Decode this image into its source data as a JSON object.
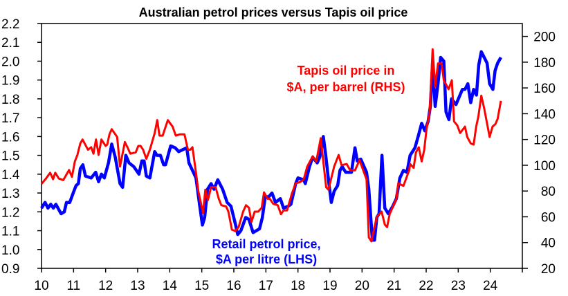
{
  "chart_data": {
    "type": "line",
    "title": "Australian petrol prices versus Tapis oil price",
    "xlabel": "",
    "xlim": [
      10,
      25
    ],
    "x_ticks": [
      "10",
      "11",
      "12",
      "13",
      "14",
      "15",
      "16",
      "17",
      "18",
      "19",
      "20",
      "21",
      "22",
      "23",
      "24"
    ],
    "left_axis": {
      "label": "",
      "ylim": [
        0.9,
        2.2
      ],
      "ticks": [
        "0.9",
        "1.0",
        "1.1",
        "1.2",
        "1.3",
        "1.4",
        "1.5",
        "1.6",
        "1.7",
        "1.8",
        "1.9",
        "2.0",
        "2.1",
        "2.2"
      ]
    },
    "right_axis": {
      "label": "",
      "ylim": [
        20,
        210
      ],
      "ticks": [
        "20",
        "40",
        "60",
        "80",
        "100",
        "120",
        "140",
        "160",
        "180",
        "200"
      ]
    },
    "grid": false,
    "annotations": {
      "oil": [
        "Tapis oil price in",
        "$A, per barrel (RHS)"
      ],
      "petrol": [
        "Retail petrol price,",
        "$A per litre (LHS)"
      ]
    },
    "series": [
      {
        "name": "Retail petrol price, $A per litre (LHS)",
        "axis": "left",
        "color": "#0000FF",
        "points": [
          [
            10.0,
            1.22
          ],
          [
            10.11,
            1.25
          ],
          [
            10.2,
            1.22
          ],
          [
            10.29,
            1.24
          ],
          [
            10.37,
            1.22
          ],
          [
            10.45,
            1.24
          ],
          [
            10.61,
            1.19
          ],
          [
            10.71,
            1.2
          ],
          [
            10.78,
            1.25
          ],
          [
            10.88,
            1.25
          ],
          [
            11.01,
            1.31
          ],
          [
            11.08,
            1.34
          ],
          [
            11.15,
            1.35
          ],
          [
            11.21,
            1.43
          ],
          [
            11.29,
            1.45
          ],
          [
            11.37,
            1.39
          ],
          [
            11.55,
            1.38
          ],
          [
            11.69,
            1.41
          ],
          [
            11.78,
            1.36
          ],
          [
            11.87,
            1.4
          ],
          [
            11.96,
            1.38
          ],
          [
            12.09,
            1.46
          ],
          [
            12.19,
            1.56
          ],
          [
            12.3,
            1.49
          ],
          [
            12.45,
            1.35
          ],
          [
            12.53,
            1.33
          ],
          [
            12.63,
            1.5
          ],
          [
            12.73,
            1.46
          ],
          [
            12.88,
            1.44
          ],
          [
            13.04,
            1.4
          ],
          [
            13.13,
            1.47
          ],
          [
            13.2,
            1.47
          ],
          [
            13.27,
            1.39
          ],
          [
            13.38,
            1.38
          ],
          [
            13.53,
            1.52
          ],
          [
            13.6,
            1.5
          ],
          [
            13.71,
            1.5
          ],
          [
            13.81,
            1.45
          ],
          [
            13.87,
            1.45
          ],
          [
            14.03,
            1.55
          ],
          [
            14.17,
            1.54
          ],
          [
            14.28,
            1.52
          ],
          [
            14.53,
            1.54
          ],
          [
            14.6,
            1.46
          ],
          [
            14.71,
            1.42
          ],
          [
            14.82,
            1.38
          ],
          [
            14.93,
            1.24
          ],
          [
            15.02,
            1.13
          ],
          [
            15.09,
            1.17
          ],
          [
            15.18,
            1.32
          ],
          [
            15.29,
            1.35
          ],
          [
            15.38,
            1.32
          ],
          [
            15.5,
            1.37
          ],
          [
            15.65,
            1.32
          ],
          [
            15.79,
            1.25
          ],
          [
            15.91,
            1.23
          ],
          [
            16.04,
            1.14
          ],
          [
            16.12,
            1.08
          ],
          [
            16.22,
            1.1
          ],
          [
            16.37,
            1.17
          ],
          [
            16.47,
            1.16
          ],
          [
            16.6,
            1.09
          ],
          [
            16.8,
            1.11
          ],
          [
            16.89,
            1.17
          ],
          [
            16.98,
            1.28
          ],
          [
            17.09,
            1.28
          ],
          [
            17.19,
            1.3
          ],
          [
            17.3,
            1.25
          ],
          [
            17.45,
            1.27
          ],
          [
            17.55,
            1.22
          ],
          [
            17.7,
            1.23
          ],
          [
            17.78,
            1.24
          ],
          [
            17.93,
            1.35
          ],
          [
            18.0,
            1.38
          ],
          [
            18.18,
            1.37
          ],
          [
            18.23,
            1.35
          ],
          [
            18.36,
            1.44
          ],
          [
            18.46,
            1.49
          ],
          [
            18.6,
            1.46
          ],
          [
            18.68,
            1.49
          ],
          [
            18.79,
            1.6
          ],
          [
            18.86,
            1.51
          ],
          [
            18.96,
            1.36
          ],
          [
            19.04,
            1.25
          ],
          [
            19.13,
            1.31
          ],
          [
            19.24,
            1.34
          ],
          [
            19.31,
            1.42
          ],
          [
            19.38,
            1.44
          ],
          [
            19.49,
            1.41
          ],
          [
            19.67,
            1.41
          ],
          [
            19.78,
            1.54
          ],
          [
            19.85,
            1.47
          ],
          [
            19.96,
            1.48
          ],
          [
            20.14,
            1.41
          ],
          [
            20.21,
            1.32
          ],
          [
            20.32,
            1.05
          ],
          [
            20.39,
            1.05
          ],
          [
            20.46,
            1.17
          ],
          [
            20.53,
            1.19
          ],
          [
            20.62,
            1.5
          ],
          [
            20.71,
            1.22
          ],
          [
            20.82,
            1.19
          ],
          [
            20.96,
            1.23
          ],
          [
            21.07,
            1.27
          ],
          [
            21.18,
            1.38
          ],
          [
            21.29,
            1.42
          ],
          [
            21.4,
            1.41
          ],
          [
            21.5,
            1.5
          ],
          [
            21.65,
            1.54
          ],
          [
            21.75,
            1.6
          ],
          [
            21.86,
            1.67
          ],
          [
            21.96,
            1.63
          ],
          [
            22.06,
            1.68
          ],
          [
            22.13,
            1.76
          ],
          [
            22.2,
            1.99
          ],
          [
            22.28,
            1.76
          ],
          [
            22.37,
            1.88
          ],
          [
            22.45,
            2.02
          ],
          [
            22.55,
            2.0
          ],
          [
            22.62,
            1.73
          ],
          [
            22.71,
            1.69
          ],
          [
            22.79,
            1.8
          ],
          [
            22.93,
            1.77
          ],
          [
            23.13,
            1.85
          ],
          [
            23.21,
            1.85
          ],
          [
            23.3,
            1.88
          ],
          [
            23.39,
            1.78
          ],
          [
            23.48,
            1.85
          ],
          [
            23.57,
            1.82
          ],
          [
            23.64,
            1.98
          ],
          [
            23.72,
            2.05
          ],
          [
            23.9,
            1.99
          ],
          [
            23.98,
            1.88
          ],
          [
            24.08,
            1.85
          ],
          [
            24.15,
            1.95
          ],
          [
            24.23,
            1.99
          ],
          [
            24.33,
            2.02
          ]
        ]
      },
      {
        "name": "Tapis oil price in $A, per barrel (RHS)",
        "axis": "right",
        "color": "#FF0000",
        "points": [
          [
            10.0,
            85.6
          ],
          [
            10.14,
            89.7
          ],
          [
            10.27,
            94.2
          ],
          [
            10.36,
            89.2
          ],
          [
            10.43,
            94.2
          ],
          [
            10.54,
            89.7
          ],
          [
            10.68,
            88.5
          ],
          [
            10.86,
            96.3
          ],
          [
            10.95,
            91
          ],
          [
            11.04,
            103
          ],
          [
            11.12,
            108
          ],
          [
            11.21,
            117
          ],
          [
            11.28,
            120
          ],
          [
            11.45,
            112
          ],
          [
            11.55,
            114
          ],
          [
            11.62,
            109
          ],
          [
            11.7,
            120
          ],
          [
            11.78,
            108
          ],
          [
            11.87,
            120
          ],
          [
            12.0,
            115
          ],
          [
            12.05,
            116
          ],
          [
            12.12,
            124
          ],
          [
            12.19,
            128
          ],
          [
            12.36,
            122
          ],
          [
            12.45,
            99
          ],
          [
            12.6,
            118
          ],
          [
            12.68,
            114
          ],
          [
            12.77,
            109
          ],
          [
            12.94,
            110
          ],
          [
            13.02,
            115
          ],
          [
            13.09,
            115
          ],
          [
            13.17,
            112
          ],
          [
            13.27,
            105
          ],
          [
            13.38,
            112
          ],
          [
            13.53,
            125
          ],
          [
            13.61,
            135
          ],
          [
            13.68,
            123
          ],
          [
            13.78,
            123
          ],
          [
            13.94,
            135
          ],
          [
            14.09,
            130
          ],
          [
            14.19,
            123
          ],
          [
            14.32,
            124
          ],
          [
            14.46,
            124
          ],
          [
            14.57,
            112
          ],
          [
            14.64,
            112
          ],
          [
            14.71,
            114
          ],
          [
            14.82,
            94
          ],
          [
            14.89,
            80
          ],
          [
            15.04,
            63
          ],
          [
            15.11,
            81
          ],
          [
            15.19,
            73
          ],
          [
            15.29,
            83
          ],
          [
            15.43,
            83
          ],
          [
            15.53,
            74
          ],
          [
            15.61,
            69
          ],
          [
            15.76,
            68
          ],
          [
            15.83,
            64
          ],
          [
            15.94,
            50
          ],
          [
            16.04,
            49
          ],
          [
            16.15,
            52
          ],
          [
            16.29,
            64
          ],
          [
            16.38,
            69
          ],
          [
            16.47,
            67
          ],
          [
            16.55,
            56
          ],
          [
            16.65,
            64
          ],
          [
            16.76,
            64
          ],
          [
            16.87,
            67
          ],
          [
            16.94,
            79
          ],
          [
            17.05,
            74
          ],
          [
            17.12,
            74
          ],
          [
            17.23,
            70
          ],
          [
            17.37,
            69
          ],
          [
            17.47,
            62
          ],
          [
            17.55,
            65
          ],
          [
            17.66,
            65
          ],
          [
            17.81,
            78
          ],
          [
            17.93,
            86
          ],
          [
            18.07,
            87
          ],
          [
            18.18,
            89
          ],
          [
            18.29,
            99
          ],
          [
            18.46,
            107
          ],
          [
            18.57,
            103
          ],
          [
            18.71,
            121
          ],
          [
            18.88,
            83
          ],
          [
            18.95,
            81
          ],
          [
            19.13,
            99
          ],
          [
            19.27,
            108
          ],
          [
            19.36,
            100
          ],
          [
            19.52,
            101
          ],
          [
            19.63,
            96
          ],
          [
            19.78,
            96
          ],
          [
            19.92,
            104
          ],
          [
            20.14,
            89
          ],
          [
            20.21,
            44
          ],
          [
            20.29,
            41
          ],
          [
            20.46,
            60
          ],
          [
            20.61,
            64
          ],
          [
            20.71,
            54
          ],
          [
            20.78,
            52
          ],
          [
            20.86,
            62
          ],
          [
            21.07,
            74
          ],
          [
            21.13,
            86
          ],
          [
            21.29,
            84
          ],
          [
            21.47,
            96
          ],
          [
            21.5,
            101
          ],
          [
            21.61,
            98
          ],
          [
            21.68,
            110
          ],
          [
            21.77,
            114
          ],
          [
            21.86,
            103
          ],
          [
            21.94,
            112
          ],
          [
            22.01,
            128
          ],
          [
            22.11,
            142
          ],
          [
            22.2,
            190
          ],
          [
            22.28,
            161
          ],
          [
            22.37,
            179
          ],
          [
            22.48,
            179
          ],
          [
            22.55,
            166
          ],
          [
            22.7,
            159
          ],
          [
            22.8,
            166
          ],
          [
            22.87,
            134
          ],
          [
            22.97,
            131
          ],
          [
            23.06,
            125
          ],
          [
            23.21,
            130
          ],
          [
            23.28,
            122
          ],
          [
            23.39,
            117
          ],
          [
            23.48,
            116
          ],
          [
            23.56,
            130
          ],
          [
            23.63,
            138
          ],
          [
            23.72,
            154
          ],
          [
            23.81,
            144
          ],
          [
            23.98,
            122
          ],
          [
            24.07,
            130
          ],
          [
            24.16,
            132
          ],
          [
            24.23,
            136
          ],
          [
            24.33,
            150
          ]
        ]
      }
    ]
  }
}
